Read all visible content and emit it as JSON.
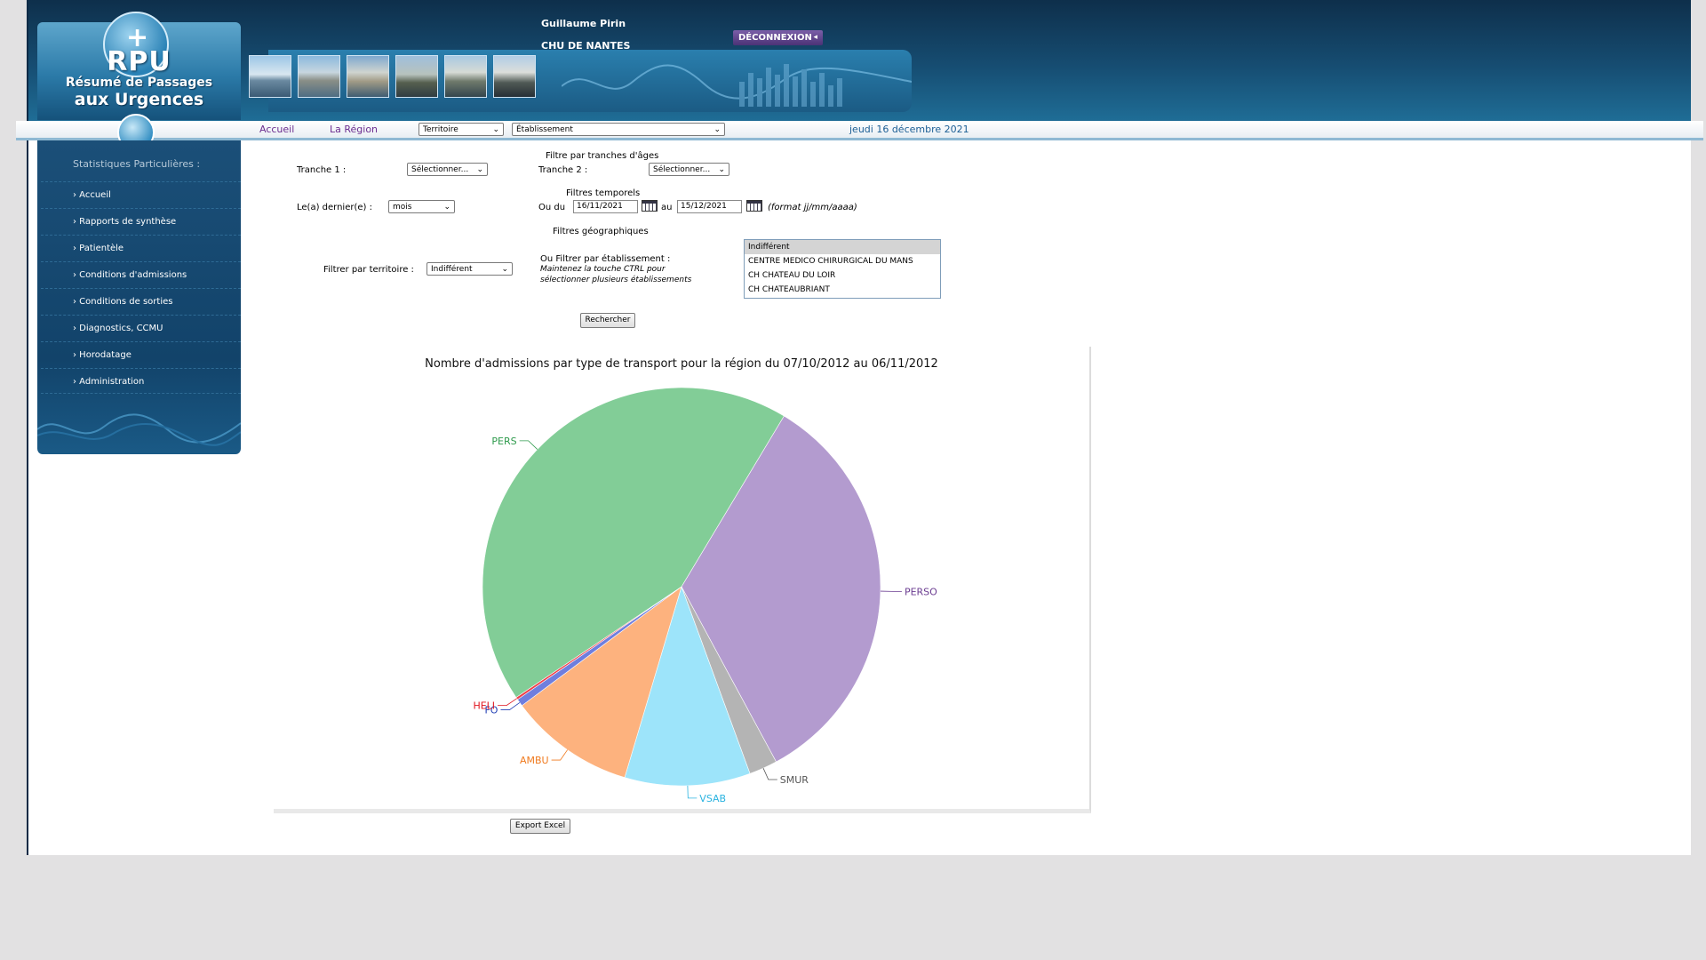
{
  "header": {
    "user_name": "Guillaume Pirin",
    "hospital": "CHU DE NANTES",
    "logout_label": "DÉCONNEXION",
    "logout_arrow": "◂",
    "logo_abbr": "RPU",
    "logo_line1": "Résumé de Passages",
    "logo_line2": "aux Urgences"
  },
  "nav": {
    "accueil": "Accueil",
    "region": "La Région",
    "territoire_select": "Territoire",
    "etablissement_select": "Établissement",
    "date": "jeudi 16 décembre 2021"
  },
  "sidebar": {
    "title": "Statistiques Particulières :",
    "items": [
      {
        "label": "› Accueil"
      },
      {
        "label": "› Rapports de synthèse"
      },
      {
        "label": "› Patientèle"
      },
      {
        "label": "› Conditions d'admissions"
      },
      {
        "label": "› Conditions de sorties"
      },
      {
        "label": "› Diagnostics, CCMU"
      },
      {
        "label": "› Horodatage"
      },
      {
        "label": "› Administration"
      }
    ]
  },
  "filters": {
    "age_heading": "Filtre par tranches d'âges",
    "tranche1_label": "Tranche 1 :",
    "tranche1_value": "Sélectionner...",
    "tranche2_label": "Tranche 2 :",
    "tranche2_value": "Sélectionner...",
    "time_heading": "Filtres temporels",
    "last_label": "Le(a) dernier(e) :",
    "last_value": "mois",
    "ou_du": "Ou du",
    "date_from": "16/11/2021",
    "au": "au",
    "date_to": "15/12/2021",
    "format_hint": "(format jj/mm/aaaa)",
    "geo_heading": "Filtres géographiques",
    "territoire_label": "Filtrer par territoire :",
    "territoire_value": "Indifférent",
    "etab_label": "Ou Filtrer par établissement :",
    "etab_hint1": "Maintenez la touche CTRL pour",
    "etab_hint2": "sélectionner plusieurs établissements",
    "etab_options": [
      "Indifférent",
      "CENTRE MEDICO CHIRURGICAL DU MANS",
      "CH CHATEAU DU LOIR",
      "CH CHATEAUBRIANT"
    ],
    "search_button": "Rechercher",
    "chevron": "⌄"
  },
  "export_button": "Export Excel",
  "chart_data": {
    "type": "pie",
    "title": "Nombre d'admissions par type de transport pour la région du 07/10/2012 au 06/11/2012",
    "slices": [
      {
        "label": "PERSO",
        "value": 33.5,
        "color": "#b39bcf"
      },
      {
        "label": "SMUR",
        "value": 2.3,
        "color": "#b4b4b4"
      },
      {
        "label": "VSAB",
        "value": 10.2,
        "color": "#9de4fa"
      },
      {
        "label": "AMBU",
        "value": 10.2,
        "color": "#fdb27e"
      },
      {
        "label": "FO",
        "value": 0.6,
        "color": "#6f7ede"
      },
      {
        "label": "HELI",
        "value": 0.2,
        "color": "#f0404a"
      },
      {
        "label": "PERS",
        "value": 43.0,
        "color": "#82cd97"
      }
    ],
    "label_colors": {
      "PERSO": "#6b3d91",
      "SMUR": "#555555",
      "VSAB": "#2ab3e0",
      "AMBU": "#f07a1e",
      "FO": "#2340b5",
      "HELI": "#e0151f",
      "PERS": "#2e9a4c"
    },
    "start_angle_deg": 31
  }
}
